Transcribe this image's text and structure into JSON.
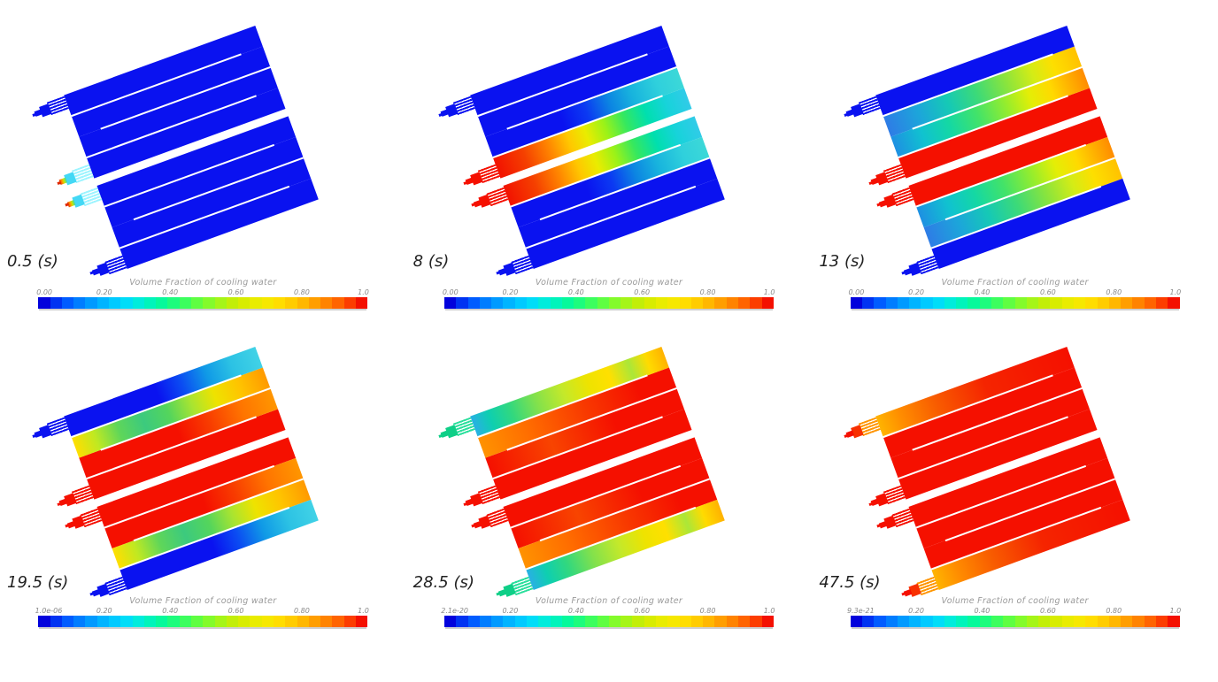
{
  "colorbar": {
    "title": "Volume Fraction of cooling water",
    "segments": [
      "#0202dc",
      "#0033f2",
      "#005cff",
      "#007dff",
      "#009aff",
      "#00b4ff",
      "#00caff",
      "#00ddf8",
      "#00ecdc",
      "#00f4bb",
      "#06f99b",
      "#1dfc7d",
      "#3cfe5e",
      "#5ffe42",
      "#83fb2b",
      "#a5f518",
      "#c2ee08",
      "#d8ec00",
      "#e9ec00",
      "#f6e800",
      "#ffdd00",
      "#ffcc00",
      "#ffb700",
      "#ff9e00",
      "#ff8300",
      "#ff6400",
      "#fc3d00",
      "#f41000"
    ]
  },
  "panels": [
    {
      "time_label": "0.5 (s)",
      "colorbar_ticks": [
        "0.00",
        "0.20",
        "0.40",
        "0.60",
        "0.80",
        "1.0"
      ],
      "lanes": [
        "#0a12f0",
        "#0a12f0",
        "#0a12f0",
        "#0a12f0"
      ],
      "connectors": {
        "inlet": {
          "fingers": "#9df4ff",
          "block": "#43d8f5",
          "nozzle": "linear-gradient(90deg,#e83800 0%,#ff9800 35%,#c8e800 60%,#38d8b0 100%)",
          "tip": "#e02800"
        },
        "outlet": {
          "fingers": "#0a12f0",
          "block": "#0a12f0",
          "nozzle": "#0a12f0",
          "tip": "#0a12f0"
        }
      }
    },
    {
      "time_label": "8 (s)",
      "colorbar_ticks": [
        "0.00",
        "0.20",
        "0.40",
        "0.60",
        "0.80",
        "1.0"
      ],
      "lanes": [
        "linear-gradient(90deg,#f21200 0%,#f54000 15%,#ff8800 28%,#ffc800 38%,#eaec00 47%,#9af218 57%,#36e85e 67%,#00dfae 78%,#17d3da 89%,#31cbe8 100%)",
        "linear-gradient(90deg,#0a12f0 0%,#0a12f0 38%,#0b3af2 51%,#0c85e2 63%,#18b4dd 75%,#2fd0dc 88%,#3cd8d8 100%)",
        "#0a12f0",
        "#0a12f0"
      ],
      "connectors": {
        "inlet": {
          "fingers": "#f51000",
          "block": "#f51000",
          "nozzle": "#f51000",
          "tip": "#f51000"
        },
        "outlet": {
          "fingers": "#0a12f0",
          "block": "#0a12f0",
          "nozzle": "#0a12f0",
          "tip": "#0a12f0"
        }
      }
    },
    {
      "time_label": "13 (s)",
      "colorbar_ticks": [
        "0.00",
        "0.20",
        "0.40",
        "0.60",
        "0.80",
        "1.0"
      ],
      "lanes": [
        "#f51000",
        "linear-gradient(90deg,#1e90e2 0%,#10c2d0 15%,#14d8a4 29%,#43e368 44%,#97ed2c 59%,#e4ee06 71%,#ffd900 82%,#ffae00 92%,#ff8c00 100%)",
        "linear-gradient(90deg,#2e7ce6 0%,#1ca6da 17%,#15c9b6 32%,#3cda78 47%,#88e43e 62%,#d4ec16 76%,#fddf00 87%,#ffc200 100%)",
        "#0a12f0"
      ],
      "connectors": {
        "inlet": {
          "fingers": "#f51000",
          "block": "#f51000",
          "nozzle": "#f51000",
          "tip": "#f51000"
        },
        "outlet": {
          "fingers": "#0a12f0",
          "block": "#0a12f0",
          "nozzle": "#0a12f0",
          "tip": "#0a12f0"
        }
      }
    },
    {
      "time_label": "19.5 (s)",
      "colorbar_ticks": [
        "1.0e-06",
        "0.20",
        "0.40",
        "0.60",
        "0.80",
        "1.0"
      ],
      "lanes": [
        "#f51000",
        "linear-gradient(90deg,#f51000 0%,#f51000 50%,#f83c00 66%,#ff7400 83%,#ff9600 100%)",
        "linear-gradient(90deg,#ffde00 0%,#bfe922 11%,#5fd659 23%,#3cca7e 36%,#54d55c 49%,#a8e431 61%,#eee300 73%,#ffc400 86%,#ff9a00 100%)",
        "linear-gradient(90deg,#0a12f0 0%,#0a12f0 47%,#0b4df2 60%,#109ae6 73%,#2cc2e4 86%,#41d2e6 100%)"
      ],
      "connectors": {
        "inlet": {
          "fingers": "#f51000",
          "block": "#f51000",
          "nozzle": "#f51000",
          "tip": "#f51000"
        },
        "outlet": {
          "fingers": "#0a12f0",
          "block": "#0a12f0",
          "nozzle": "#0a12f0",
          "tip": "#0a12f0"
        }
      }
    },
    {
      "time_label": "28.5 (s)",
      "colorbar_ticks": [
        "2.1e-20",
        "0.20",
        "0.40",
        "0.60",
        "0.80",
        "1.0"
      ],
      "lanes": [
        "#f51000",
        "linear-gradient(90deg,#f51000 0%,#f84400 33%,#f51000 66%,#f51000 100%)",
        "linear-gradient(90deg,#ff9200 0%,#ff6c00 25%,#f83800 55%,#f51000 82%,#f51000 100%)",
        "linear-gradient(90deg,#28b0e4 0%,#0ecfb0 9%,#32d87e 20%,#82e14c 33%,#c4e92a 47%,#eee300 60%,#ffe000 71%,#abe738 82%,#ffdb00 91%,#ffb200 100%)"
      ],
      "connectors": {
        "inlet": {
          "fingers": "#f51000",
          "block": "#f51000",
          "nozzle": "#f51000",
          "tip": "#f51000"
        },
        "outlet": {
          "fingers": "#2adf9c",
          "block": "#0ecf87",
          "nozzle": "#0ecf87",
          "tip": "#0ecf87"
        }
      }
    },
    {
      "time_label": "47.5 (s)",
      "colorbar_ticks": [
        "9.3e-21",
        "0.20",
        "0.40",
        "0.60",
        "0.80",
        "1.0"
      ],
      "lanes": [
        "#f51000",
        "#f51000",
        "#f51000",
        "linear-gradient(90deg,#ffb400 0%,#ff8c00 12%,#f85c00 30%,#f52400 56%,#f51000 100%)"
      ],
      "connectors": {
        "inlet": {
          "fingers": "#f51000",
          "block": "#f51000",
          "nozzle": "#f51000",
          "tip": "#f51000"
        },
        "outlet": {
          "fingers": "#ff9600",
          "block": "#f83000",
          "nozzle": "#f51000",
          "tip": "#f51000"
        }
      }
    }
  ],
  "chart_data": {
    "type": "heatmap",
    "title": "Volume Fraction of cooling water",
    "quantity": "volume fraction of cooling water in two serpentine cooling plates (4 channels each, common inlet/outlet manifolds)",
    "colorbar_range": [
      0,
      1
    ],
    "colorbar_tick_values": [
      0,
      0.2,
      0.4,
      0.6,
      0.8,
      1.0
    ],
    "colormap": "rainbow (blue=0 to red=1), ~28 discrete bands",
    "snapshots": [
      {
        "time_s": 0.5,
        "time_label": "0.5 (s)",
        "colorbar_min_label": "0.00",
        "state": "plates empty (~0, blue everywhere); water just entering the two inlet nozzles (~0.3-1 at nozzle tips)"
      },
      {
        "time_s": 8,
        "time_label": "8 (s)",
        "colorbar_min_label": "0.00",
        "state": "inlet channel of each plate filling: ~1 (red) near inlet grading to ~0.25 (cyan) at far end; ~0.25 wrapping into channel 2; outer channels ~0"
      },
      {
        "time_s": 13,
        "time_label": "13 (s)",
        "colorbar_min_label": "0.00",
        "state": "inlet channel ~1; channels 2-3 grade from ~0.9 (orange) at turn end to ~0.2-0.3 (cyan/blue) at far end; outermost channel ~0"
      },
      {
        "time_s": 19.5,
        "time_label": "19.5 (s)",
        "colorbar_min_label": "1.0e-06",
        "state": "channels 1-2 ~1 (red); channel 3 ~0.5-0.9 (green tongue to orange); outlet channel ~0 (blue) with ~0.3 (cyan) at turn end"
      },
      {
        "time_s": 28.5,
        "time_label": "28.5 (s)",
        "colorbar_min_label": "2.1e-20",
        "state": "channels 1-3 ~1; outlet channel ~0.3-0.9 (cyan near outlet through green/yellow); outlet manifolds ~0.5 (teal-green)"
      },
      {
        "time_s": 47.5,
        "time_label": "47.5 (s)",
        "colorbar_min_label": "9.3e-21",
        "state": "plates essentially full (~1, red) with ~0.85-0.9 (orange) streaks remaining along the outlet channels"
      }
    ]
  }
}
